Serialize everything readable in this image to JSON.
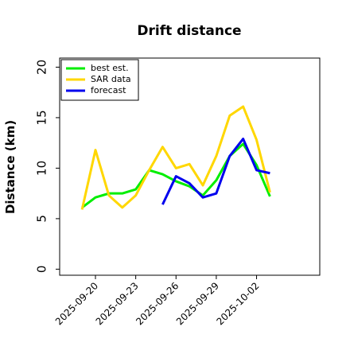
{
  "chart_data": {
    "type": "line",
    "title": "Drift distance",
    "ylabel": "Distance (km)",
    "x": [
      "2025-09-19",
      "2025-09-20",
      "2025-09-21",
      "2025-09-22",
      "2025-09-23",
      "2025-09-24",
      "2025-09-25",
      "2025-09-26",
      "2025-09-27",
      "2025-09-28",
      "2025-09-29",
      "2025-09-30",
      "2025-10-01",
      "2025-10-02",
      "2025-10-03"
    ],
    "series": [
      {
        "name": "best est.",
        "color": "#00ee00",
        "values": [
          6.1,
          7.1,
          7.5,
          7.5,
          7.9,
          9.8,
          9.4,
          8.7,
          8.2,
          7.3,
          8.8,
          11.2,
          12.4,
          10.3,
          7.2
        ]
      },
      {
        "name": "SAR data",
        "color": "#ffd700",
        "values": [
          5.9,
          11.8,
          7.3,
          6.1,
          7.3,
          9.8,
          12.1,
          10.0,
          10.4,
          8.3,
          11.2,
          15.2,
          16.1,
          12.8,
          7.6
        ]
      },
      {
        "name": "forecast",
        "color": "#0000ee",
        "values": [
          null,
          null,
          null,
          null,
          null,
          null,
          6.4,
          9.2,
          8.5,
          7.1,
          7.5,
          11.2,
          12.9,
          9.8,
          9.5
        ]
      }
    ],
    "xlim": [
      "2025-09-17T08:00",
      "2025-10-06T17:00"
    ],
    "xticks": [
      "2025-09-20",
      "2025-09-23",
      "2025-09-26",
      "2025-09-29",
      "2025-10-02"
    ],
    "ylim": [
      -0.6,
      20.9
    ],
    "yticks": [
      0,
      5,
      10,
      15,
      20
    ],
    "legend": "upper left"
  }
}
